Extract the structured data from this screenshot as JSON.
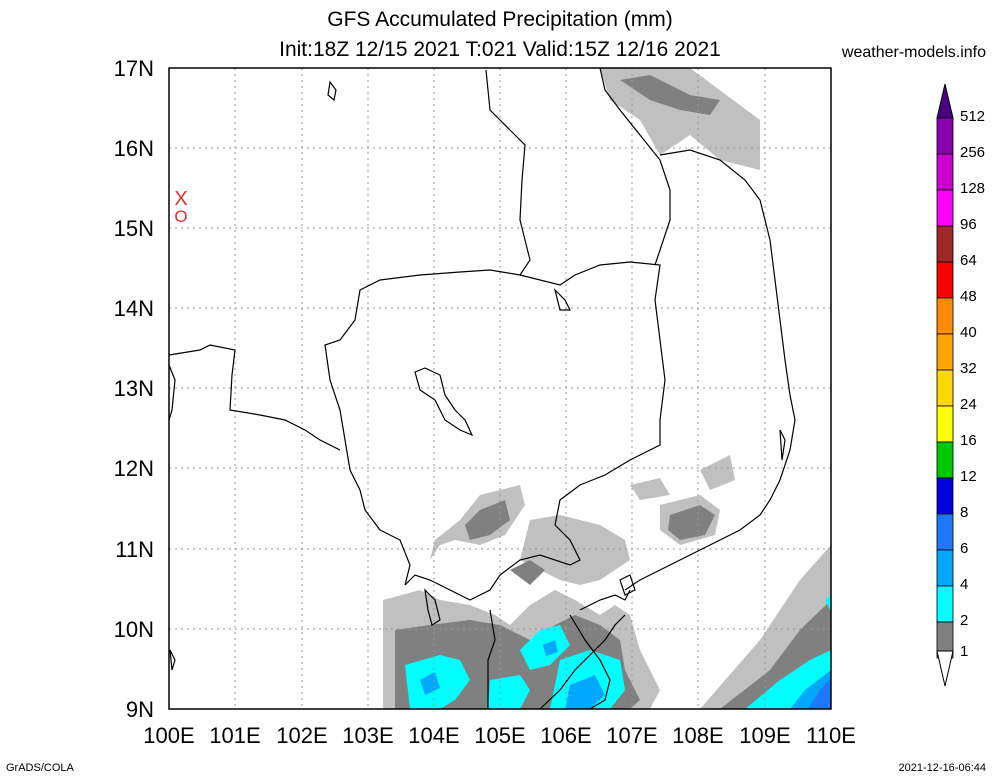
{
  "header": {
    "title": "GFS Accumulated Precipitation (mm)",
    "subtitle": "Init:18Z 12/15 2021 T:021 Valid:15Z 12/16 2021",
    "site": "weather-models.info"
  },
  "footer": {
    "left": "GrADS/COLA",
    "right": "2021-12-16-06:44"
  },
  "axes": {
    "lat_labels": [
      "17N",
      "16N",
      "15N",
      "14N",
      "13N",
      "12N",
      "11N",
      "10N",
      "9N"
    ],
    "lon_labels": [
      "100E",
      "101E",
      "102E",
      "103E",
      "104E",
      "105E",
      "106E",
      "107E",
      "108E",
      "109E",
      "110E"
    ]
  },
  "map": {
    "lat_range": [
      9,
      17
    ],
    "lon_range": [
      100,
      110
    ],
    "gridlines": true,
    "markers": [
      "X",
      "O"
    ],
    "marker_color": "#e03030"
  },
  "colorbar": {
    "labels": [
      "512",
      "256",
      "128",
      "96",
      "64",
      "48",
      "40",
      "32",
      "24",
      "16",
      "12",
      "8",
      "6",
      "4",
      "2",
      "1"
    ],
    "colors": [
      "#4b0082",
      "#8a00b0",
      "#cc00cc",
      "#ff00ff",
      "#a02828",
      "#ff0000",
      "#ff8c00",
      "#ffa500",
      "#ffd700",
      "#ffff00",
      "#00c800",
      "#0000e0",
      "#1e78ff",
      "#00a8ff",
      "#00ffff",
      "#808080",
      "#c0c0c0",
      "#ffffff"
    ]
  }
}
